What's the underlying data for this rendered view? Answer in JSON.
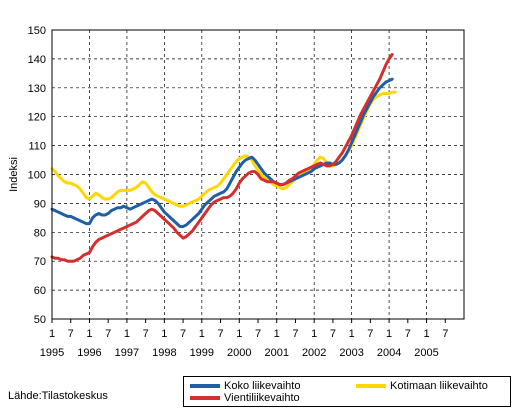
{
  "source": "Lähde:Tilastokeskus",
  "chart_data": {
    "type": "line",
    "ylabel": "Indeksi",
    "xlabel": "",
    "ylim": [
      50,
      150
    ],
    "yticks": [
      50,
      60,
      70,
      80,
      90,
      100,
      110,
      120,
      130,
      140,
      150
    ],
    "grid": "dashed",
    "legend_position": "bottom-right",
    "x_month_labels": [
      "1",
      "7",
      "1",
      "7",
      "1",
      "7",
      "1",
      "7",
      "1",
      "7",
      "1",
      "7",
      "1",
      "7",
      "1",
      "7",
      "1",
      "7",
      "1",
      "7",
      "1",
      "7"
    ],
    "x_year_labels": [
      "1995",
      "1996",
      "1997",
      "1998",
      "1999",
      "2000",
      "2001",
      "2002",
      "2003",
      "2004",
      "2005"
    ],
    "x_start": "1995-01",
    "series": [
      {
        "name": "Koko liikevaihto",
        "color": "#1f5fa8",
        "values": [
          88,
          87.5,
          87,
          86.5,
          86,
          85.5,
          85.5,
          85,
          84.5,
          84,
          83.5,
          83,
          83,
          85,
          86,
          86.5,
          86,
          86,
          86.5,
          87.5,
          88,
          88.5,
          88.5,
          89,
          88.5,
          88,
          88.5,
          89,
          89.5,
          90,
          90.5,
          91,
          91.5,
          91,
          90,
          88.5,
          87,
          86,
          85,
          84,
          83,
          82,
          82,
          82.5,
          83.5,
          84.5,
          85.5,
          86.5,
          88,
          89.5,
          90.5,
          91.5,
          92.5,
          93,
          93.5,
          94,
          95,
          97,
          99,
          101,
          102.5,
          104,
          105,
          105.5,
          106,
          105,
          103.5,
          102,
          100.5,
          99.5,
          98.5,
          97.5,
          97,
          96.5,
          96.5,
          97,
          97.5,
          98,
          98.5,
          99,
          99.5,
          100,
          100.5,
          101,
          102,
          102.5,
          103,
          103.5,
          104,
          104,
          103.5,
          103.5,
          104,
          105,
          106.5,
          108.5,
          111,
          113.5,
          116,
          118.5,
          121,
          123,
          125,
          127,
          128.5,
          130,
          131,
          132,
          132.5,
          133
        ]
      },
      {
        "name": "Kotimaan liikevaihto",
        "color": "#ffd700",
        "values": [
          102,
          101,
          99.5,
          98.5,
          97.5,
          97,
          97,
          96.5,
          96,
          95,
          93.5,
          92,
          91.5,
          92.5,
          93.5,
          93,
          92,
          91.5,
          91.5,
          92,
          93,
          94,
          94.5,
          94.5,
          94.5,
          94.5,
          95,
          95.5,
          96.5,
          97.5,
          97,
          95.5,
          94,
          93,
          92.5,
          92,
          91.5,
          91,
          90.5,
          90,
          89.5,
          89,
          89,
          89.5,
          90,
          90.5,
          91,
          91.5,
          92.5,
          93.5,
          94.5,
          95,
          95.5,
          96,
          97,
          98.5,
          100,
          101.5,
          103,
          104.5,
          105.5,
          106,
          106.5,
          106,
          105,
          103,
          101.5,
          100,
          99,
          98,
          97.5,
          96.5,
          96,
          95.5,
          95,
          95.5,
          96.5,
          97.5,
          98.5,
          99.5,
          100,
          100.5,
          101,
          102,
          103.5,
          105,
          106,
          105.5,
          104,
          103,
          103,
          103.5,
          104,
          105,
          106.5,
          108,
          110,
          112.5,
          115,
          117.5,
          120,
          122.5,
          124.5,
          126,
          127,
          127.5,
          128,
          128,
          128,
          128.5,
          128.5
        ]
      },
      {
        "name": "Vientiliikevaihto",
        "color": "#d42f2f",
        "values": [
          71.5,
          71,
          71,
          70.5,
          70.5,
          70,
          70,
          70,
          70.5,
          71,
          72,
          72.5,
          73,
          75,
          76.5,
          77.5,
          78,
          78.5,
          79,
          79.5,
          80,
          80.5,
          81,
          81.5,
          82,
          82.5,
          83,
          83.5,
          84.5,
          85.5,
          86.5,
          87.5,
          88,
          87.5,
          86.5,
          85.5,
          84.5,
          83.5,
          82.5,
          81.5,
          80,
          79,
          78,
          78.5,
          79.5,
          80.5,
          82,
          83.5,
          85,
          86.5,
          88,
          89.5,
          90.5,
          91,
          91.5,
          92,
          92,
          92.5,
          93.5,
          95,
          97,
          98.5,
          99.5,
          100.5,
          101,
          101,
          100,
          98.5,
          98,
          97.5,
          97.5,
          97.5,
          97,
          96.5,
          96.5,
          97,
          98,
          98.5,
          99.5,
          100.5,
          101,
          101.5,
          102,
          102.5,
          103,
          103.5,
          104,
          103.5,
          103,
          103,
          103.5,
          104.5,
          106,
          107.5,
          109.5,
          111.5,
          113.5,
          116,
          118.5,
          121,
          123,
          125,
          127,
          129,
          131,
          133,
          135.5,
          138,
          140,
          141.5
        ]
      }
    ]
  }
}
